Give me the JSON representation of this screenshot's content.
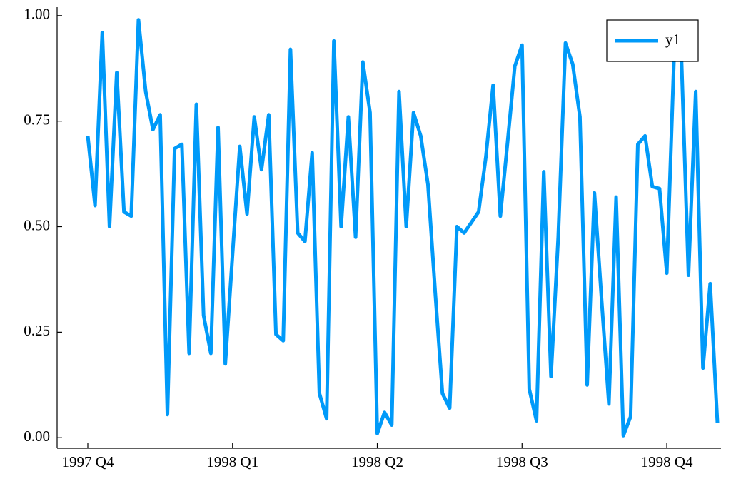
{
  "chart_data": {
    "type": "line",
    "categories": [
      "1997 Q4",
      null,
      null,
      null,
      null,
      null,
      null,
      null,
      null,
      null,
      null,
      null,
      null,
      null,
      null,
      null,
      null,
      null,
      null,
      null,
      "1998 Q1",
      null,
      null,
      null,
      null,
      null,
      null,
      null,
      null,
      null,
      null,
      null,
      null,
      null,
      null,
      null,
      null,
      null,
      null,
      null,
      "1998 Q2",
      null,
      null,
      null,
      null,
      null,
      null,
      null,
      null,
      null,
      null,
      null,
      null,
      null,
      null,
      null,
      null,
      null,
      null,
      null,
      "1998 Q3",
      null,
      null,
      null,
      null,
      null,
      null,
      null,
      null,
      null,
      null,
      null,
      null,
      null,
      null,
      null,
      null,
      null,
      null,
      null,
      "1998 Q4",
      null,
      null,
      null,
      null,
      null,
      null,
      null
    ],
    "series": [
      {
        "name": "y1",
        "color": "#009af9",
        "values": [
          0.715,
          0.55,
          0.96,
          0.5,
          0.865,
          0.535,
          0.525,
          0.99,
          0.82,
          0.73,
          0.765,
          0.055,
          0.685,
          0.695,
          0.2,
          0.79,
          0.29,
          0.2,
          0.735,
          0.175,
          0.435,
          0.69,
          0.53,
          0.76,
          0.635,
          0.765,
          0.245,
          0.23,
          0.92,
          0.485,
          0.465,
          0.675,
          0.105,
          0.045,
          0.94,
          0.5,
          0.76,
          0.475,
          0.89,
          0.77,
          0.01,
          0.06,
          0.03,
          0.82,
          0.5,
          0.77,
          0.715,
          0.6,
          0.345,
          0.105,
          0.07,
          0.5,
          0.485,
          0.51,
          0.535,
          0.665,
          0.835,
          0.525,
          0.7,
          0.88,
          0.93,
          0.115,
          0.04,
          0.63,
          0.145,
          0.475,
          0.935,
          0.885,
          0.76,
          0.125,
          0.58,
          0.325,
          0.08,
          0.57,
          0.005,
          0.05,
          0.695,
          0.715,
          0.595,
          0.59,
          0.39,
          0.9,
          0.915,
          0.385,
          0.82,
          0.165,
          0.365,
          0.035
        ]
      }
    ],
    "ylim": [
      -0.025,
      1.02
    ],
    "yticks": [
      {
        "value": 0,
        "label": "0.00"
      },
      {
        "value": 0.25,
        "label": "0.25"
      },
      {
        "value": 0.5,
        "label": "0.50"
      },
      {
        "value": 0.75,
        "label": "0.75"
      },
      {
        "value": 1,
        "label": "1.00"
      }
    ],
    "grid": false,
    "legend": "top-right"
  }
}
